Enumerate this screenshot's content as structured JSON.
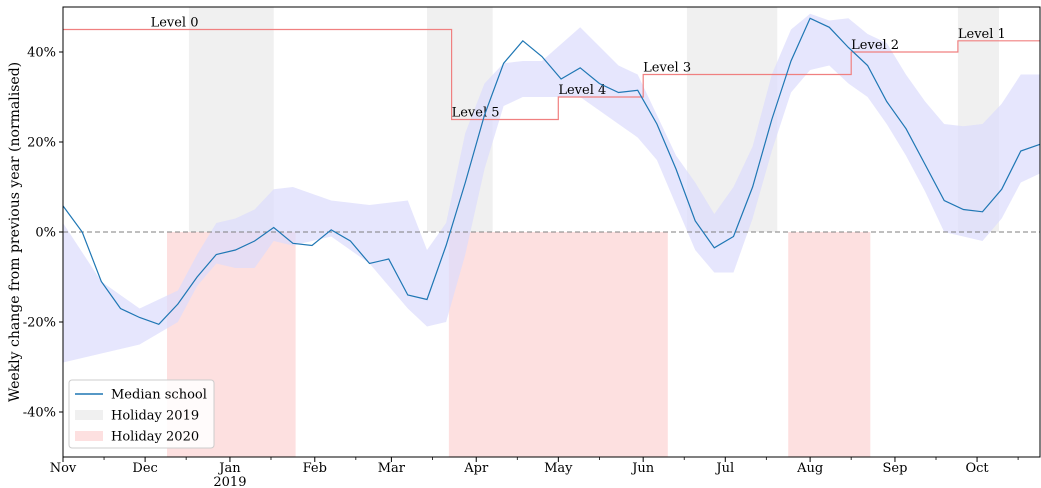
{
  "chart_data": {
    "type": "line",
    "ylabel": "Weekly change from previous year (normalised)",
    "ylim": [
      -50,
      50
    ],
    "y_ticks": [
      -40,
      -20,
      0,
      20,
      40
    ],
    "y_tick_labels": [
      "-40%",
      "-20%",
      "0%",
      "20%",
      "40%"
    ],
    "x_range": [
      "2018-11-01",
      "2019-10-24"
    ],
    "x_ticks": [
      {
        "date": "2018-11-01",
        "label": "Nov"
      },
      {
        "date": "2018-12-01",
        "label": "Dec"
      },
      {
        "date": "2019-01-01",
        "label": "Jan",
        "sublabel": "2019"
      },
      {
        "date": "2019-02-01",
        "label": "Feb"
      },
      {
        "date": "2019-03-01",
        "label": "Mar"
      },
      {
        "date": "2019-04-01",
        "label": "Apr"
      },
      {
        "date": "2019-05-01",
        "label": "May"
      },
      {
        "date": "2019-06-01",
        "label": "Jun"
      },
      {
        "date": "2019-07-01",
        "label": "Jul"
      },
      {
        "date": "2019-08-01",
        "label": "Aug"
      },
      {
        "date": "2019-09-01",
        "label": "Sep"
      },
      {
        "date": "2019-10-01",
        "label": "Oct"
      }
    ],
    "grid": false,
    "legend_position": "bottom-left",
    "legend": [
      {
        "label": "Median school",
        "kind": "line",
        "color": "#1f77b4"
      },
      {
        "label": "Holiday 2019",
        "kind": "patch",
        "color": "#f0f0f0"
      },
      {
        "label": "Holiday 2020",
        "kind": "patch",
        "color": "#fde0e0"
      }
    ],
    "colors": {
      "median": "#1f77b4",
      "band": "#dcdcfc",
      "holiday_2019": "#f0f0f0",
      "holiday_2020": "#fde0e0",
      "level_line": "#f08080",
      "zero_line": "#7f7f7f"
    },
    "median_series": {
      "name": "Median school",
      "points": [
        [
          "2018-11-01",
          5.8
        ],
        [
          "2018-11-08",
          0.0
        ],
        [
          "2018-11-15",
          -11.0
        ],
        [
          "2018-11-22",
          -17.0
        ],
        [
          "2018-11-29",
          -19.0
        ],
        [
          "2018-12-06",
          -20.5
        ],
        [
          "2018-12-13",
          -16.0
        ],
        [
          "2018-12-20",
          -10.0
        ],
        [
          "2018-12-27",
          -5.0
        ],
        [
          "2019-01-03",
          -4.0
        ],
        [
          "2019-01-10",
          -2.0
        ],
        [
          "2019-01-17",
          1.0
        ],
        [
          "2019-01-24",
          -2.5
        ],
        [
          "2019-01-31",
          -3.0
        ],
        [
          "2019-02-07",
          0.5
        ],
        [
          "2019-02-14",
          -2.0
        ],
        [
          "2019-02-21",
          -7.0
        ],
        [
          "2019-02-28",
          -6.0
        ],
        [
          "2019-03-07",
          -14.0
        ],
        [
          "2019-03-14",
          -15.0
        ],
        [
          "2019-03-21",
          -3.0
        ],
        [
          "2019-03-28",
          11.0
        ],
        [
          "2019-04-04",
          26.0
        ],
        [
          "2019-04-11",
          37.5
        ],
        [
          "2019-04-18",
          42.5
        ],
        [
          "2019-04-25",
          39.0
        ],
        [
          "2019-05-02",
          34.0
        ],
        [
          "2019-05-09",
          36.5
        ],
        [
          "2019-05-16",
          33.0
        ],
        [
          "2019-05-23",
          31.0
        ],
        [
          "2019-05-30",
          31.5
        ],
        [
          "2019-06-06",
          24.0
        ],
        [
          "2019-06-13",
          14.0
        ],
        [
          "2019-06-20",
          2.5
        ],
        [
          "2019-06-27",
          -3.5
        ],
        [
          "2019-07-04",
          -1.0
        ],
        [
          "2019-07-11",
          10.0
        ],
        [
          "2019-07-18",
          25.0
        ],
        [
          "2019-07-25",
          38.0
        ],
        [
          "2019-08-01",
          47.5
        ],
        [
          "2019-08-08",
          45.5
        ],
        [
          "2019-08-15",
          41.0
        ],
        [
          "2019-08-22",
          37.0
        ],
        [
          "2019-08-29",
          29.0
        ],
        [
          "2019-09-05",
          23.0
        ],
        [
          "2019-09-12",
          15.0
        ],
        [
          "2019-09-19",
          7.0
        ],
        [
          "2019-09-26",
          5.0
        ],
        [
          "2019-10-03",
          4.5
        ],
        [
          "2019-10-10",
          9.5
        ],
        [
          "2019-10-17",
          18.0
        ],
        [
          "2019-10-24",
          19.5
        ]
      ]
    },
    "band": {
      "lower": [
        [
          "2018-11-01",
          -29.0
        ],
        [
          "2018-11-15",
          -27.0
        ],
        [
          "2018-11-29",
          -25.0
        ],
        [
          "2018-12-13",
          -20.0
        ],
        [
          "2018-12-20",
          -12.0
        ],
        [
          "2018-12-27",
          -7.0
        ],
        [
          "2019-01-03",
          -8.0
        ],
        [
          "2019-01-10",
          -8.0
        ],
        [
          "2019-01-17",
          -2.0
        ],
        [
          "2019-01-24",
          -3.0
        ],
        [
          "2019-02-07",
          -1.0
        ],
        [
          "2019-02-21",
          -7.0
        ],
        [
          "2019-03-07",
          -17.0
        ],
        [
          "2019-03-14",
          -21.0
        ],
        [
          "2019-03-21",
          -20.0
        ],
        [
          "2019-03-28",
          -5.0
        ],
        [
          "2019-04-04",
          14.0
        ],
        [
          "2019-04-11",
          28.0
        ],
        [
          "2019-04-18",
          30.0
        ],
        [
          "2019-04-25",
          30.0
        ],
        [
          "2019-05-09",
          30.0
        ],
        [
          "2019-05-23",
          24.0
        ],
        [
          "2019-05-30",
          21.0
        ],
        [
          "2019-06-06",
          16.0
        ],
        [
          "2019-06-13",
          6.0
        ],
        [
          "2019-06-20",
          -4.0
        ],
        [
          "2019-06-27",
          -9.0
        ],
        [
          "2019-07-04",
          -9.0
        ],
        [
          "2019-07-11",
          3.0
        ],
        [
          "2019-07-18",
          18.0
        ],
        [
          "2019-07-25",
          31.0
        ],
        [
          "2019-08-01",
          36.0
        ],
        [
          "2019-08-08",
          37.0
        ],
        [
          "2019-08-15",
          33.0
        ],
        [
          "2019-08-22",
          30.0
        ],
        [
          "2019-08-29",
          24.0
        ],
        [
          "2019-09-05",
          17.0
        ],
        [
          "2019-09-12",
          9.0
        ],
        [
          "2019-09-19",
          0.0
        ],
        [
          "2019-09-26",
          -1.0
        ],
        [
          "2019-10-03",
          -2.0
        ],
        [
          "2019-10-10",
          3.0
        ],
        [
          "2019-10-17",
          11.0
        ],
        [
          "2019-10-24",
          13.0
        ]
      ],
      "upper": [
        [
          "2018-11-01",
          2.0
        ],
        [
          "2018-11-15",
          -11.0
        ],
        [
          "2018-11-29",
          -17.0
        ],
        [
          "2018-12-13",
          -13.0
        ],
        [
          "2018-12-20",
          -5.0
        ],
        [
          "2018-12-27",
          2.0
        ],
        [
          "2019-01-03",
          3.0
        ],
        [
          "2019-01-10",
          5.0
        ],
        [
          "2019-01-17",
          9.5
        ],
        [
          "2019-01-24",
          10.0
        ],
        [
          "2019-02-07",
          7.0
        ],
        [
          "2019-02-21",
          6.0
        ],
        [
          "2019-03-07",
          7.0
        ],
        [
          "2019-03-14",
          -4.0
        ],
        [
          "2019-03-21",
          2.0
        ],
        [
          "2019-03-28",
          22.0
        ],
        [
          "2019-04-04",
          33.0
        ],
        [
          "2019-04-11",
          37.5
        ],
        [
          "2019-04-18",
          38.0
        ],
        [
          "2019-04-25",
          38.0
        ],
        [
          "2019-05-09",
          45.5
        ],
        [
          "2019-05-23",
          37.0
        ],
        [
          "2019-05-30",
          35.0
        ],
        [
          "2019-06-06",
          26.0
        ],
        [
          "2019-06-13",
          17.0
        ],
        [
          "2019-06-20",
          11.0
        ],
        [
          "2019-06-27",
          4.0
        ],
        [
          "2019-07-04",
          10.0
        ],
        [
          "2019-07-11",
          19.0
        ],
        [
          "2019-07-18",
          35.0
        ],
        [
          "2019-07-25",
          45.0
        ],
        [
          "2019-08-01",
          48.5
        ],
        [
          "2019-08-08",
          47.0
        ],
        [
          "2019-08-15",
          47.5
        ],
        [
          "2019-08-22",
          44.0
        ],
        [
          "2019-08-29",
          42.0
        ],
        [
          "2019-09-05",
          35.0
        ],
        [
          "2019-09-12",
          29.0
        ],
        [
          "2019-09-19",
          24.0
        ],
        [
          "2019-09-26",
          23.5
        ],
        [
          "2019-10-03",
          24.0
        ],
        [
          "2019-10-10",
          28.5
        ],
        [
          "2019-10-17",
          35.0
        ],
        [
          "2019-10-24",
          35.0
        ]
      ]
    },
    "holidays_2019": [
      [
        "2018-12-17",
        "2019-01-17"
      ],
      [
        "2019-03-14",
        "2019-04-07"
      ],
      [
        "2019-06-17",
        "2019-07-20"
      ],
      [
        "2019-09-24",
        "2019-10-09"
      ]
    ],
    "holidays_2020": [
      [
        "2018-12-09",
        "2019-01-25"
      ],
      [
        "2019-03-22",
        "2019-06-10"
      ],
      [
        "2019-07-24",
        "2019-08-23"
      ]
    ],
    "levels": [
      {
        "label": "Level 0",
        "start": "2018-11-01",
        "end": "2019-03-23",
        "value": 45.0,
        "label_date": "2018-12-03"
      },
      {
        "label": "Level 5",
        "start": "2019-03-23",
        "end": "2019-05-01",
        "value": 25.0,
        "label_date": "2019-03-23"
      },
      {
        "label": "Level 4",
        "start": "2019-05-01",
        "end": "2019-06-01",
        "value": 30.0,
        "label_date": "2019-05-01"
      },
      {
        "label": "Level 3",
        "start": "2019-06-01",
        "end": "2019-08-16",
        "value": 35.0,
        "label_date": "2019-06-01"
      },
      {
        "label": "Level 2",
        "start": "2019-08-16",
        "end": "2019-09-24",
        "value": 40.0,
        "label_date": "2019-08-16"
      },
      {
        "label": "Level 1",
        "start": "2019-09-24",
        "end": "2019-10-24",
        "value": 42.5,
        "label_date": "2019-09-24"
      }
    ]
  }
}
